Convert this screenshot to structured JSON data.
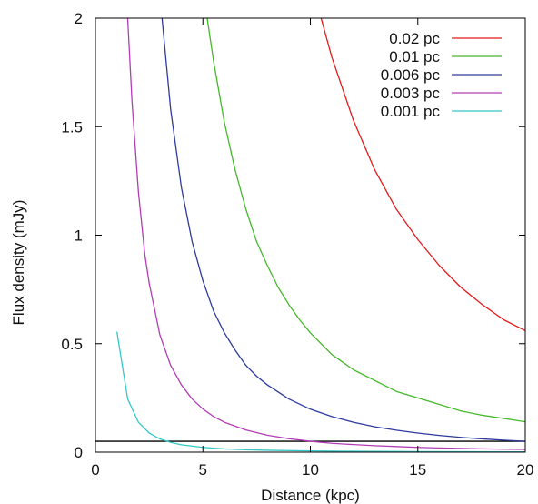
{
  "chart_data": {
    "type": "line",
    "title": "",
    "xlabel": "Distance (kpc)",
    "ylabel": "Flux density (mJy)",
    "xlim": [
      0,
      20
    ],
    "ylim": [
      0,
      2
    ],
    "x_ticks": [
      "0",
      "5",
      "10",
      "15",
      "20"
    ],
    "y_ticks": [
      "0",
      "0.5",
      "1",
      "1.5",
      "2"
    ],
    "grid": false,
    "legend_position": "top-right",
    "threshold_line": {
      "y": 0.05,
      "color": "#000000"
    },
    "series": [
      {
        "name": "0.02 pc",
        "color": "#e31a1c",
        "x": [
          10.5,
          11,
          12,
          13,
          14,
          15,
          16,
          17,
          18,
          19,
          20
        ],
        "y": [
          2.0,
          1.82,
          1.53,
          1.3,
          1.12,
          0.98,
          0.86,
          0.76,
          0.68,
          0.61,
          0.56
        ]
      },
      {
        "name": "0.01 pc",
        "color": "#43b829",
        "x": [
          5.2,
          5.5,
          6,
          6.5,
          7,
          7.5,
          8,
          8.5,
          9,
          9.5,
          10,
          11,
          12,
          13,
          14,
          15,
          16,
          17,
          18,
          19,
          20
        ],
        "y": [
          2.0,
          1.8,
          1.52,
          1.3,
          1.12,
          0.97,
          0.86,
          0.76,
          0.68,
          0.61,
          0.55,
          0.45,
          0.38,
          0.33,
          0.28,
          0.25,
          0.22,
          0.19,
          0.17,
          0.155,
          0.14
        ]
      },
      {
        "name": "0.006 pc",
        "color": "#2e3a9e",
        "x": [
          3.1,
          3.3,
          3.5,
          4,
          4.5,
          5,
          5.5,
          6,
          6.5,
          7,
          7.5,
          8,
          9,
          10,
          11,
          12,
          13,
          14,
          15,
          16,
          17,
          18,
          19,
          20
        ],
        "y": [
          2.0,
          1.79,
          1.58,
          1.22,
          0.97,
          0.79,
          0.65,
          0.55,
          0.47,
          0.4,
          0.35,
          0.31,
          0.245,
          0.198,
          0.164,
          0.138,
          0.117,
          0.101,
          0.088,
          0.077,
          0.068,
          0.061,
          0.055,
          0.05
        ]
      },
      {
        "name": "0.003 pc",
        "color": "#b23cb5",
        "x": [
          1.5,
          1.7,
          2,
          2.3,
          2.5,
          3,
          3.5,
          4,
          4.5,
          5,
          5.5,
          6,
          7,
          8,
          9,
          10,
          11,
          12,
          13,
          14,
          15,
          16,
          17,
          18,
          19,
          20
        ],
        "y": [
          2.0,
          1.62,
          1.2,
          0.91,
          0.78,
          0.54,
          0.4,
          0.31,
          0.245,
          0.199,
          0.164,
          0.138,
          0.102,
          0.078,
          0.062,
          0.05,
          0.041,
          0.035,
          0.03,
          0.026,
          0.022,
          0.0195,
          0.0172,
          0.0153,
          0.0137,
          0.0125
        ]
      },
      {
        "name": "0.001 pc",
        "color": "#35c8c8",
        "x": [
          1,
          1.5,
          2,
          2.5,
          3,
          3.5,
          4,
          5,
          6,
          7,
          8,
          10,
          12,
          15,
          20
        ],
        "y": [
          0.555,
          0.245,
          0.138,
          0.088,
          0.061,
          0.045,
          0.034,
          0.022,
          0.015,
          0.011,
          0.0087,
          0.0056,
          0.0039,
          0.0025,
          0.0014
        ]
      }
    ]
  }
}
